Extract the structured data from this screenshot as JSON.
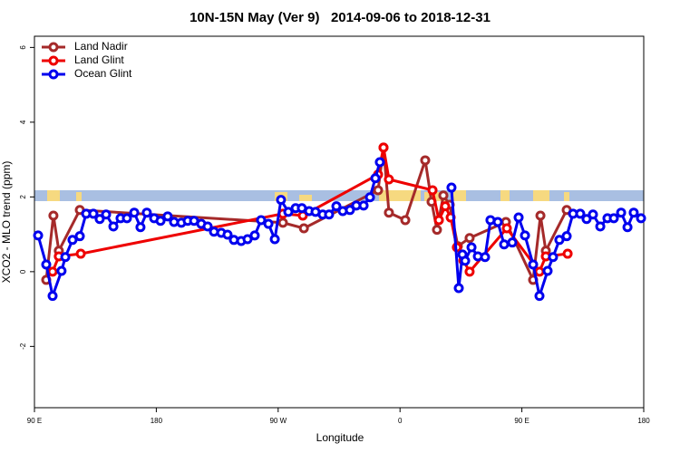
{
  "chart_data": {
    "type": "line",
    "title": "10N-15N May (Ver 9)   2014-09-06 to 2018-12-31",
    "xlabel": "Longitude",
    "ylabel": "XCO2 - MLO trend (ppm)",
    "xlim": [
      90,
      540
    ],
    "ylim": [
      -3.64,
      6.3
    ],
    "xticks": [
      {
        "value": 90,
        "label": "90 E"
      },
      {
        "value": 180,
        "label": "180"
      },
      {
        "value": 270,
        "label": "90 W"
      },
      {
        "value": 360,
        "label": "0"
      },
      {
        "value": 450,
        "label": "90 E"
      },
      {
        "value": 540,
        "label": "180"
      }
    ],
    "yticks": [
      -2,
      0,
      2,
      4,
      6
    ],
    "legend": "top-left",
    "series": [
      {
        "name": "Land Nadir",
        "color": "#a52a2a",
        "x": [
          98.7,
          104,
          108,
          123.5,
          273.5,
          289,
          343.8,
          347.8,
          351.8,
          363.9,
          378.6,
          383.3,
          387.3,
          392,
          396.7,
          402.7,
          411.4,
          438.2,
          458.3,
          463.7,
          467.7,
          483.1
        ],
        "values": [
          -0.22,
          1.5,
          0.56,
          1.65,
          1.31,
          1.16,
          2.18,
          3.32,
          1.58,
          1.38,
          2.98,
          1.87,
          1.12,
          2.04,
          1.79,
          0.68,
          0.9,
          1.33,
          -0.22,
          1.5,
          0.56,
          1.65
        ]
      },
      {
        "name": "Land Glint",
        "color": "#ee0000",
        "x": [
          103.4,
          108,
          124.2,
          273.5,
          288.2,
          343.8,
          347.8,
          351.8,
          384,
          388.7,
          393.4,
          397.4,
          402,
          406.8,
          411.4,
          438.9,
          463,
          467.7,
          483.8
        ],
        "values": [
          0,
          0.41,
          0.48,
          1.55,
          1.5,
          2.6,
          3.32,
          2.47,
          2.18,
          1.38,
          1.75,
          1.45,
          0.65,
          0.3,
          0,
          1.16,
          0,
          0.41,
          0.48
        ]
      },
      {
        "name": "Ocean Glint",
        "color": "#0000ee",
        "x": [
          92.7,
          98.7,
          103.4,
          110,
          112.8,
          118.1,
          123.5,
          128.2,
          133.5,
          138.2,
          142.9,
          148.3,
          153.6,
          158.3,
          163.7,
          168.3,
          173,
          178.4,
          183.1,
          188.4,
          193.1,
          198.5,
          203.2,
          207.9,
          213.2,
          217.9,
          222.6,
          228,
          232.6,
          237.3,
          242.7,
          247.4,
          252.7,
          257.4,
          262.8,
          267.5,
          272.1,
          277.5,
          282.9,
          287.5,
          292.9,
          297.6,
          302.9,
          307.6,
          313,
          317.7,
          323,
          327.7,
          333.1,
          337.8,
          341.8,
          345.1,
          370,
          398,
          403.4,
          406.1,
          408.1,
          412.8,
          417.5,
          422.8,
          426.8,
          432.2,
          436.9,
          442.9,
          447.6,
          452.3,
          458.3,
          463,
          469,
          473,
          477.7,
          483.1,
          487.8,
          493.1,
          497.8,
          502.5,
          507.9,
          513.2,
          517.9,
          523.3,
          528,
          532.6,
          538
        ],
        "values": [
          0.97,
          0.19,
          -0.65,
          0.02,
          0.39,
          0.85,
          0.95,
          1.55,
          1.55,
          1.41,
          1.53,
          1.21,
          1.43,
          1.43,
          1.58,
          1.19,
          1.58,
          1.43,
          1.36,
          1.48,
          1.33,
          1.31,
          1.36,
          1.36,
          1.28,
          1.21,
          1.07,
          1.04,
          0.99,
          0.85,
          0.82,
          0.87,
          0.97,
          1.38,
          1.28,
          0.87,
          1.92,
          1.6,
          1.7,
          1.7,
          1.62,
          1.6,
          1.53,
          1.53,
          1.75,
          1.62,
          1.65,
          1.77,
          1.77,
          1.99,
          2.5,
          2.93,
          null,
          2.25,
          -0.44,
          0.46,
          0.29,
          0.65,
          0.41,
          0.39,
          1.38,
          1.33,
          0.73,
          0.78,
          1.45,
          0.97,
          0.19,
          -0.65,
          0.02,
          0.39,
          0.85,
          0.95,
          1.55,
          1.55,
          1.41,
          1.53,
          1.21,
          1.43,
          1.43,
          1.58,
          1.19,
          1.58,
          1.43
        ]
      }
    ]
  }
}
